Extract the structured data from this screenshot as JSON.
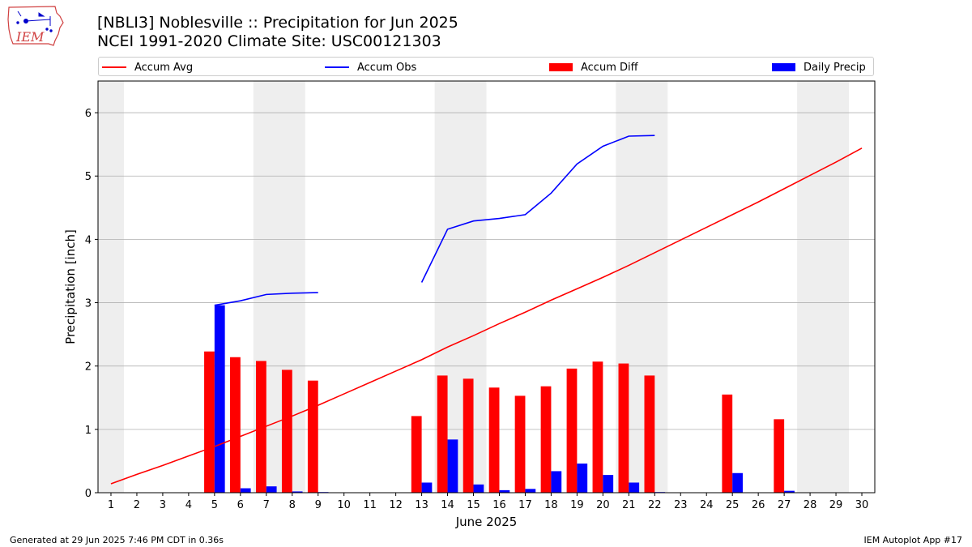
{
  "header": {
    "title_line1": "[NBLI3] Noblesville :: Precipitation for Jun 2025",
    "title_line2": "NCEI 1991-2020 Climate Site: USC00121303"
  },
  "logo": {
    "text": "IEM",
    "icon": "iem-iowa-logo"
  },
  "footer": {
    "left": "Generated at 29 Jun 2025 7:46 PM CDT in 0.36s",
    "right": "IEM Autoplot App #17"
  },
  "colors": {
    "avg": "#ff0000",
    "obs": "#0000ff",
    "diff": "#ff0000",
    "daily": "#0000ff",
    "weekend": "#eeeeee",
    "grid": "#b0b0b0"
  },
  "chart_data": {
    "type": "bar",
    "xlabel": "June 2025",
    "ylabel": "Precipitation [inch]",
    "ylim": [
      0,
      6.5
    ],
    "yticks": [
      0,
      1,
      2,
      3,
      4,
      5,
      6
    ],
    "xlim": [
      0.5,
      30.5
    ],
    "days": [
      1,
      2,
      3,
      4,
      5,
      6,
      7,
      8,
      9,
      10,
      11,
      12,
      13,
      14,
      15,
      16,
      17,
      18,
      19,
      20,
      21,
      22,
      23,
      24,
      25,
      26,
      27,
      28,
      29,
      30
    ],
    "shaded_ranges": [
      [
        0.5,
        1.5
      ],
      [
        6.5,
        8.5
      ],
      [
        13.5,
        15.5
      ],
      [
        20.5,
        22.5
      ],
      [
        27.5,
        29.5
      ]
    ],
    "grid": "y",
    "legend": {
      "placement": "top",
      "entries": [
        "Accum Avg",
        "Accum Obs",
        "Accum Diff",
        "Daily Precip"
      ]
    },
    "series": [
      {
        "name": "Accum Avg",
        "kind": "line",
        "x": [
          1,
          2,
          3,
          4,
          5,
          6,
          7,
          8,
          9,
          10,
          11,
          12,
          13,
          14,
          15,
          16,
          17,
          18,
          19,
          20,
          21,
          22,
          23,
          24,
          25,
          26,
          27,
          28,
          29,
          30
        ],
        "values": [
          0.14,
          0.29,
          0.43,
          0.58,
          0.73,
          0.89,
          1.05,
          1.21,
          1.38,
          1.56,
          1.74,
          1.92,
          2.1,
          2.3,
          2.48,
          2.67,
          2.85,
          3.04,
          3.22,
          3.4,
          3.59,
          3.79,
          3.99,
          4.19,
          4.39,
          4.59,
          4.8,
          5.01,
          5.22,
          5.44
        ]
      },
      {
        "name": "Accum Obs",
        "kind": "line",
        "segments": [
          {
            "x": [
              5,
              6,
              7,
              8,
              9
            ],
            "values": [
              2.96,
              3.03,
              3.13,
              3.15,
              3.16
            ]
          },
          {
            "x": [
              13,
              14,
              15,
              16,
              17,
              18,
              19,
              20,
              21,
              22
            ],
            "values": [
              3.32,
              4.16,
              4.29,
              4.33,
              4.39,
              4.73,
              5.19,
              5.47,
              5.63,
              5.64
            ]
          }
        ]
      },
      {
        "name": "Accum Diff",
        "kind": "bar",
        "x": [
          5,
          6,
          7,
          8,
          9,
          13,
          14,
          15,
          16,
          17,
          18,
          19,
          20,
          21,
          22,
          25,
          27
        ],
        "values": [
          2.23,
          2.14,
          2.08,
          1.94,
          1.77,
          1.21,
          1.85,
          1.8,
          1.66,
          1.53,
          1.68,
          1.96,
          2.07,
          2.04,
          1.85,
          1.55,
          1.16
        ]
      },
      {
        "name": "Daily Precip",
        "kind": "bar",
        "x": [
          5,
          6,
          7,
          8,
          9,
          13,
          14,
          15,
          16,
          17,
          18,
          19,
          20,
          21,
          22,
          25,
          27
        ],
        "values": [
          2.96,
          0.07,
          0.1,
          0.02,
          0.01,
          0.16,
          0.84,
          0.13,
          0.04,
          0.06,
          0.34,
          0.46,
          0.28,
          0.16,
          0.01,
          0.31,
          0.03
        ]
      }
    ]
  }
}
